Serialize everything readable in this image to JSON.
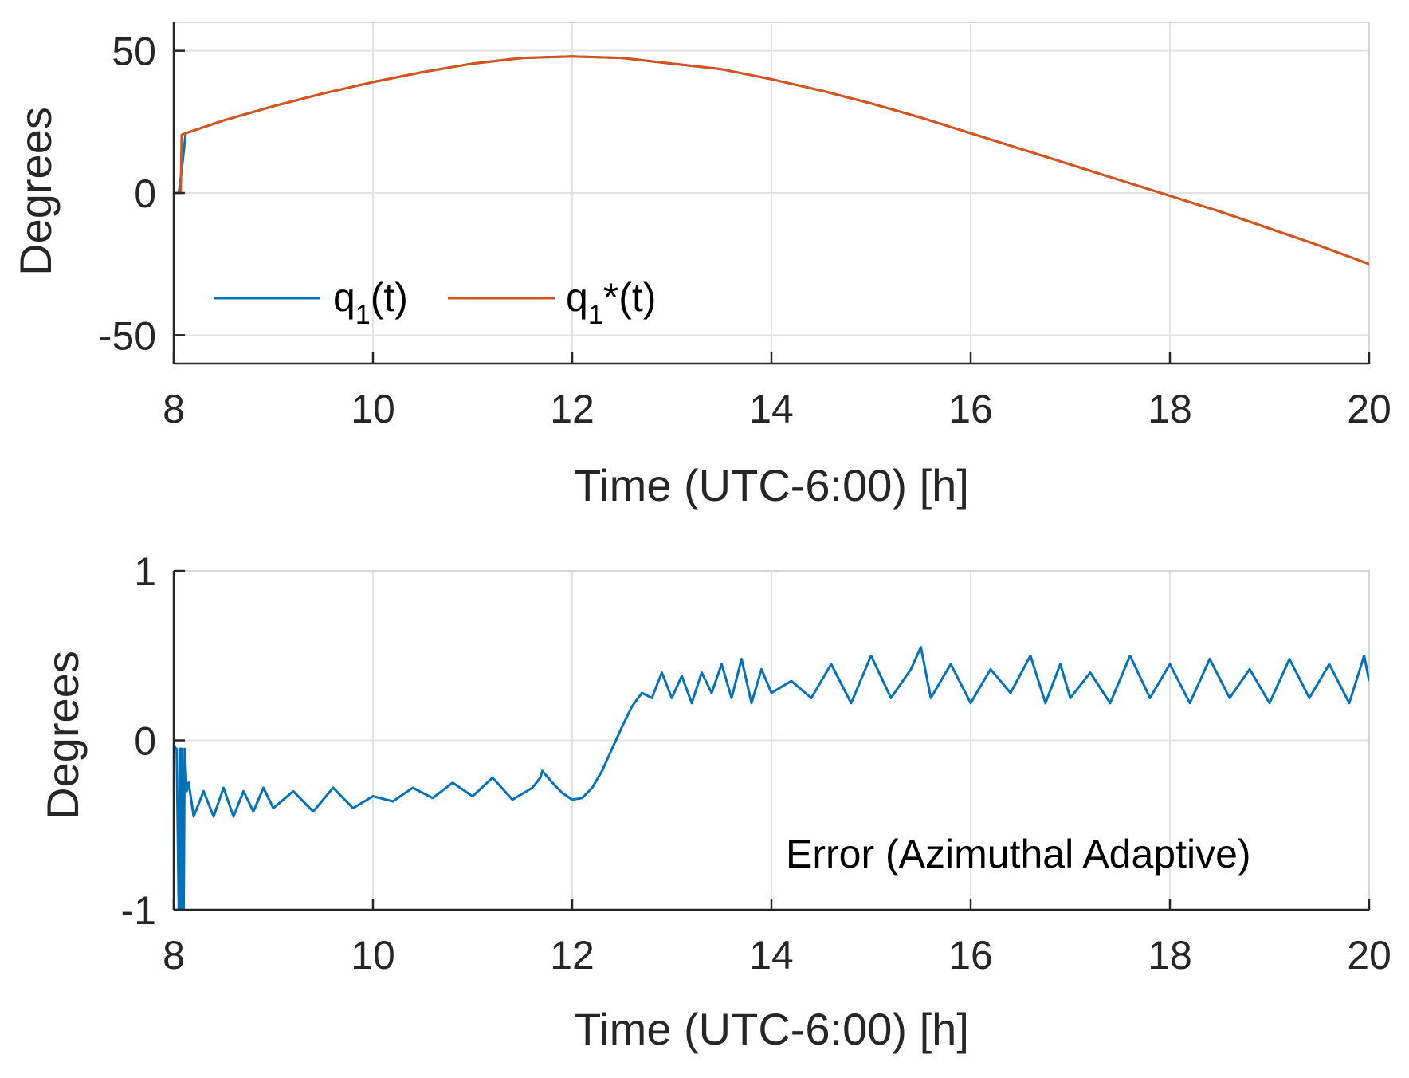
{
  "chart_data": [
    {
      "type": "line",
      "xlabel": "Time (UTC-6:00) [h]",
      "ylabel": "Degrees",
      "xlim": [
        8,
        20
      ],
      "ylim": [
        -60,
        60
      ],
      "xticks": [
        8,
        10,
        12,
        14,
        16,
        18,
        20
      ],
      "yticks": [
        -50,
        0,
        50
      ],
      "xtick_labels": [
        "8",
        "10",
        "12",
        "14",
        "16",
        "18",
        "20"
      ],
      "ytick_labels": [
        "-50",
        "0",
        "50"
      ],
      "grid": true,
      "legend": {
        "placement": "bottom-left",
        "entries": [
          {
            "base": "q",
            "sub": "1",
            "suffix": "(t)"
          },
          {
            "base": "q",
            "sub": "1",
            "suffix": "*(t)"
          }
        ]
      },
      "series": [
        {
          "name": "q1(t)",
          "color": "#0072BD",
          "x": [
            8.0,
            8.05,
            8.08,
            8.12,
            8.5,
            9.0,
            9.5,
            10.0,
            10.5,
            11.0,
            11.5,
            12.0,
            12.5,
            13.0,
            13.5,
            14.0,
            14.5,
            15.0,
            15.5,
            16.0,
            16.5,
            17.0,
            17.5,
            18.0,
            18.5,
            19.0,
            19.5,
            20.0
          ],
          "y": [
            0,
            0,
            8,
            21,
            25.5,
            30.5,
            35,
            39,
            42.5,
            45.5,
            47.5,
            48,
            47.5,
            45.5,
            43.5,
            40,
            36,
            31.5,
            26.5,
            21,
            15.5,
            10,
            4.5,
            -1,
            -6.5,
            -12.5,
            -18.5,
            -25
          ]
        },
        {
          "name": "q1*(t)",
          "color": "#D95319",
          "x": [
            8.0,
            8.07,
            8.08,
            8.12,
            8.5,
            9.0,
            9.5,
            10.0,
            10.5,
            11.0,
            11.5,
            12.0,
            12.5,
            13.0,
            13.5,
            14.0,
            14.5,
            15.0,
            15.5,
            16.0,
            16.5,
            17.0,
            17.5,
            18.0,
            18.5,
            19.0,
            19.5,
            20.0
          ],
          "y": [
            0,
            0,
            20.5,
            21,
            25.5,
            30.5,
            35,
            39,
            42.5,
            45.5,
            47.5,
            48,
            47.5,
            45.5,
            43.5,
            40,
            36,
            31.5,
            26.5,
            21,
            15.5,
            10,
            4.5,
            -1,
            -6.5,
            -12.5,
            -18.5,
            -25
          ]
        }
      ]
    },
    {
      "type": "line",
      "xlabel": "Time (UTC-6:00) [h]",
      "ylabel": "Degrees",
      "xlim": [
        8,
        20
      ],
      "ylim": [
        -1,
        1
      ],
      "xticks": [
        8,
        10,
        12,
        14,
        16,
        18,
        20
      ],
      "yticks": [
        -1,
        0,
        1
      ],
      "xtick_labels": [
        "8",
        "10",
        "12",
        "14",
        "16",
        "18",
        "20"
      ],
      "ytick_labels": [
        "-1",
        "0",
        "1"
      ],
      "grid": true,
      "annotation": "Error (Azimuthal Adaptive)",
      "annotation_placement": "bottom-right",
      "series": [
        {
          "name": "Error (Azimuthal Adaptive)",
          "color": "#0072BD",
          "x": [
            8.0,
            8.02,
            8.03,
            8.05,
            8.06,
            8.06,
            8.08,
            8.08,
            8.1,
            8.11,
            8.13,
            8.15,
            8.2,
            8.3,
            8.4,
            8.5,
            8.6,
            8.7,
            8.8,
            8.9,
            9.0,
            9.2,
            9.4,
            9.6,
            9.8,
            10.0,
            10.2,
            10.4,
            10.6,
            10.8,
            11.0,
            11.2,
            11.4,
            11.6,
            11.68,
            11.7,
            11.8,
            11.9,
            12.0,
            12.1,
            12.2,
            12.3,
            12.4,
            12.5,
            12.6,
            12.7,
            12.8,
            12.9,
            13.0,
            13.1,
            13.2,
            13.3,
            13.4,
            13.5,
            13.6,
            13.7,
            13.8,
            13.9,
            14.0,
            14.2,
            14.4,
            14.6,
            14.8,
            15.0,
            15.2,
            15.4,
            15.5,
            15.6,
            15.8,
            16.0,
            16.2,
            16.4,
            16.6,
            16.75,
            16.9,
            17.0,
            17.2,
            17.4,
            17.6,
            17.8,
            18.0,
            18.2,
            18.4,
            18.6,
            18.8,
            19.0,
            19.2,
            19.4,
            19.6,
            19.8,
            19.95,
            20.0
          ],
          "y": [
            -0.02,
            -0.05,
            -0.05,
            -1.0,
            -1.0,
            -0.05,
            -0.05,
            -1.0,
            -1.0,
            -0.05,
            -0.3,
            -0.25,
            -0.45,
            -0.3,
            -0.45,
            -0.28,
            -0.45,
            -0.3,
            -0.42,
            -0.28,
            -0.4,
            -0.3,
            -0.42,
            -0.28,
            -0.4,
            -0.33,
            -0.36,
            -0.28,
            -0.34,
            -0.25,
            -0.33,
            -0.22,
            -0.35,
            -0.28,
            -0.22,
            -0.18,
            -0.25,
            -0.31,
            -0.35,
            -0.34,
            -0.28,
            -0.18,
            -0.05,
            0.08,
            0.2,
            0.28,
            0.25,
            0.4,
            0.25,
            0.38,
            0.22,
            0.4,
            0.28,
            0.45,
            0.25,
            0.48,
            0.22,
            0.42,
            0.28,
            0.35,
            0.25,
            0.45,
            0.22,
            0.5,
            0.25,
            0.42,
            0.55,
            0.25,
            0.45,
            0.22,
            0.42,
            0.28,
            0.5,
            0.22,
            0.45,
            0.25,
            0.4,
            0.22,
            0.5,
            0.25,
            0.45,
            0.22,
            0.48,
            0.25,
            0.42,
            0.22,
            0.48,
            0.25,
            0.45,
            0.22,
            0.5,
            0.35
          ]
        }
      ]
    }
  ]
}
